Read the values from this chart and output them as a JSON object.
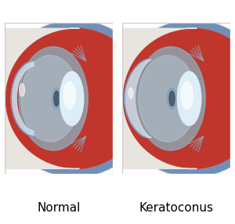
{
  "title_left": "Normal",
  "title_right": "Keratoconus",
  "bg_color": "#ffffff",
  "title_fontsize": 11,
  "sclera_red": "#c0362c",
  "sclera_red_dark": "#a02820",
  "white_sclera": "#e8e5e0",
  "blue_rim": "#7090b8",
  "blue_rim_light": "#a8c0d8",
  "aqueous_color": "#8ab0c0",
  "aqueous_light": "#b0ccd8",
  "lens_outer": "#b8d4e4",
  "lens_white": "#ddeef8",
  "lens_highlight": "#eef8ff",
  "cornea_front_color": "#c8dce8",
  "pupil_dark": "#3a5068",
  "pupil_gray": "#7898a8",
  "muscle_color": "#8aaabb",
  "border_color": "#cccccc"
}
